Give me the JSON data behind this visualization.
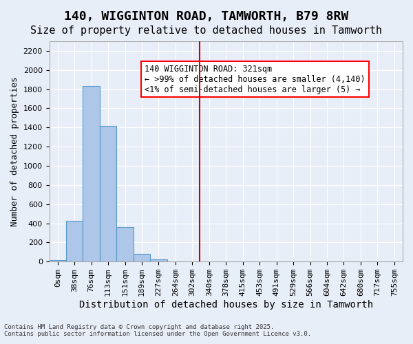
{
  "title": "140, WIGGINTON ROAD, TAMWORTH, B79 8RW",
  "subtitle": "Size of property relative to detached houses in Tamworth",
  "xlabel": "Distribution of detached houses by size in Tamworth",
  "ylabel": "Number of detached properties",
  "footer_line1": "Contains HM Land Registry data © Crown copyright and database right 2025.",
  "footer_line2": "Contains public sector information licensed under the Open Government Licence v3.0.",
  "bin_labels": [
    "0sqm",
    "38sqm",
    "76sqm",
    "113sqm",
    "151sqm",
    "189sqm",
    "227sqm",
    "264sqm",
    "302sqm",
    "340sqm",
    "378sqm",
    "415sqm",
    "453sqm",
    "491sqm",
    "529sqm",
    "566sqm",
    "604sqm",
    "642sqm",
    "680sqm",
    "717sqm",
    "755sqm"
  ],
  "bar_values": [
    15,
    425,
    1830,
    1415,
    360,
    80,
    25,
    5,
    0,
    0,
    0,
    0,
    0,
    0,
    0,
    0,
    0,
    0,
    0,
    0,
    0
  ],
  "bar_color": "#aec6e8",
  "bar_edge_color": "#5599cc",
  "vline_x": 8.43,
  "vline_color": "#cc0000",
  "ylim": [
    0,
    2300
  ],
  "yticks": [
    0,
    200,
    400,
    600,
    800,
    1000,
    1200,
    1400,
    1600,
    1800,
    2000,
    2200
  ],
  "annotation_text": "140 WIGGINTON ROAD: 321sqm\n← >99% of detached houses are smaller (4,140)\n<1% of semi-detached houses are larger (5) →",
  "bg_color": "#e8eef8",
  "grid_color": "#ffffff",
  "title_fontsize": 13,
  "subtitle_fontsize": 11,
  "axis_label_fontsize": 9,
  "tick_fontsize": 8,
  "annotation_fontsize": 8.5
}
